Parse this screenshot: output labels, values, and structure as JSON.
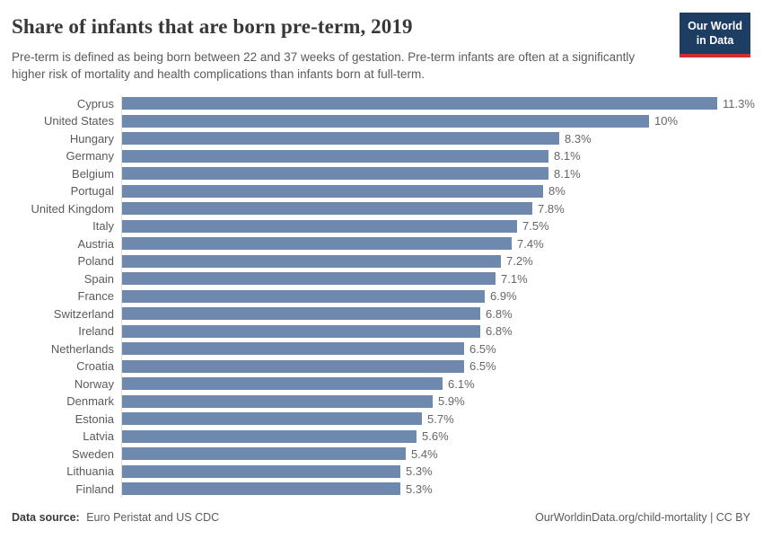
{
  "header": {
    "title": "Share of infants that are born pre-term, 2019",
    "subtitle": "Pre-term is defined as being born between 22 and 37 weeks of gestation. Pre-term infants are often at a significantly higher risk of mortality and health complications than infants born at full-term.",
    "logo": {
      "line1": "Our World",
      "line2": "in Data"
    }
  },
  "chart_data": {
    "type": "bar",
    "orientation": "horizontal",
    "title": "Share of infants that are born pre-term, 2019",
    "unit": "%",
    "xlim": [
      0,
      11.3
    ],
    "sort": "descending",
    "grid": false,
    "legend": false,
    "categories": [
      "Cyprus",
      "United States",
      "Hungary",
      "Germany",
      "Belgium",
      "Portugal",
      "United Kingdom",
      "Italy",
      "Austria",
      "Poland",
      "Spain",
      "France",
      "Switzerland",
      "Ireland",
      "Netherlands",
      "Croatia",
      "Norway",
      "Denmark",
      "Estonia",
      "Latvia",
      "Sweden",
      "Lithuania",
      "Finland"
    ],
    "values": [
      11.3,
      10,
      8.3,
      8.1,
      8.1,
      8,
      7.8,
      7.5,
      7.4,
      7.2,
      7.1,
      6.9,
      6.8,
      6.8,
      6.5,
      6.5,
      6.1,
      5.9,
      5.7,
      5.6,
      5.4,
      5.3,
      5.3
    ],
    "value_labels": [
      "11.3%",
      "10%",
      "8.3%",
      "8.1%",
      "8.1%",
      "8%",
      "7.8%",
      "7.5%",
      "7.4%",
      "7.2%",
      "7.1%",
      "6.9%",
      "6.8%",
      "6.8%",
      "6.5%",
      "6.5%",
      "6.1%",
      "5.9%",
      "5.7%",
      "5.6%",
      "5.4%",
      "5.3%",
      "5.3%"
    ],
    "bar_color": "#6f88ae"
  },
  "footer": {
    "source_label": "Data source:",
    "source_value": "Euro Peristat and US CDC",
    "credit": "OurWorldinData.org/child-mortality | CC BY"
  },
  "colors": {
    "bar": "#6f88ae",
    "logo_navy": "#1d3d63",
    "logo_red": "#d12d35",
    "title_text": "#383838",
    "body_text": "#5b5b5b",
    "axis_line": "#dedede"
  }
}
